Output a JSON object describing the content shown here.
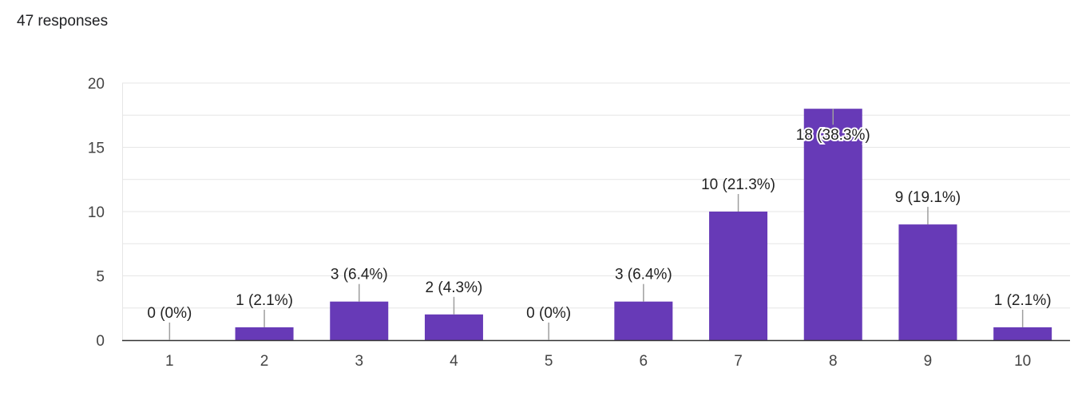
{
  "header": {
    "responses_label": "47 responses"
  },
  "colors": {
    "bar": "#673AB7",
    "grid": "#e6e6e6",
    "axis": "#333333",
    "leader": "#9e9e9e"
  },
  "chart_data": {
    "type": "bar",
    "categories": [
      "1",
      "2",
      "3",
      "4",
      "5",
      "6",
      "7",
      "8",
      "9",
      "10"
    ],
    "values": [
      0,
      1,
      3,
      2,
      0,
      3,
      10,
      18,
      9,
      1
    ],
    "data_labels": [
      "0 (0%)",
      "1 (2.1%)",
      "3 (6.4%)",
      "2 (4.3%)",
      "0 (0%)",
      "3 (6.4%)",
      "10 (21.3%)",
      "18 (38.3%)",
      "9 (19.1%)",
      "1 (2.1%)"
    ],
    "title": "",
    "xlabel": "",
    "ylabel": "",
    "ylim": [
      0,
      20
    ],
    "yticks": [
      "0",
      "5",
      "10",
      "15",
      "20"
    ],
    "grid": true
  }
}
